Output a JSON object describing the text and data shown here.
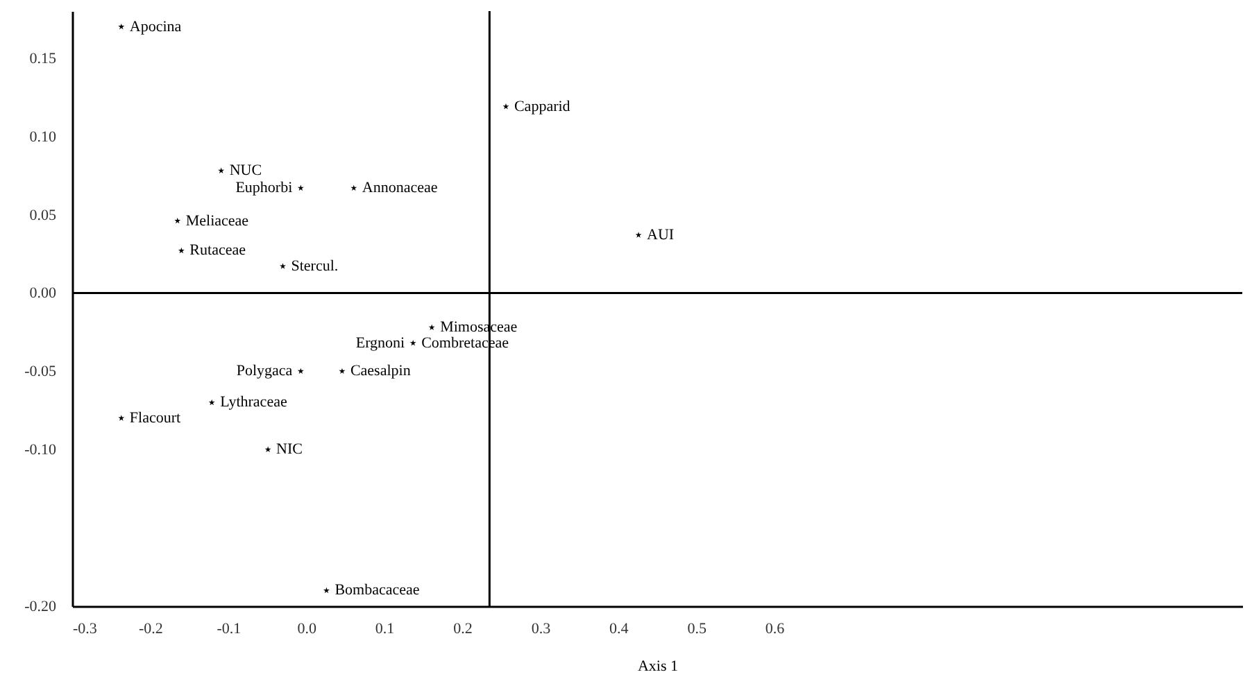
{
  "chart_data": {
    "type": "scatter",
    "xlabel": "Axis 1",
    "xlim": [
      -0.3,
      1.2
    ],
    "ylim": [
      -0.2,
      0.18
    ],
    "xticks": [
      -0.3,
      -0.2,
      -0.1,
      {
        "value": 0,
        "label": "0.0"
      },
      0.1,
      0.2,
      0.3,
      0.4,
      0.5,
      0.6
    ],
    "yticks": [
      {
        "value": 0.15,
        "label": "0.15"
      },
      {
        "value": 0.1,
        "label": "0.10"
      },
      {
        "value": 0.05,
        "label": "0.05"
      },
      {
        "value": 0,
        "label": "0.00"
      },
      {
        "value": -0.05,
        "label": "-0.05"
      },
      {
        "value": -0.1,
        "label": "-0.10"
      },
      {
        "value": -0.2,
        "label": "-0.20"
      }
    ],
    "marker": "star",
    "grid": false,
    "series": [
      {
        "color": "#000000",
        "x": [
          -0.237,
          0.256,
          -0.109,
          -0.007,
          0.061,
          -0.165,
          -0.16,
          -0.03,
          0.426,
          0.161,
          0.137,
          -0.007,
          0.046,
          -0.121,
          -0.237,
          -0.049,
          0.026
        ],
        "values": [
          0.17,
          0.119,
          0.078,
          0.067,
          0.067,
          0.046,
          0.027,
          0.017,
          0.037,
          -0.022,
          -0.032,
          -0.05,
          -0.05,
          -0.07,
          -0.08,
          -0.1,
          -0.19
        ]
      }
    ],
    "ref_lines": [
      {
        "axis": "x",
        "value": 0.235,
        "color": "#000000"
      },
      {
        "axis": "y",
        "value": 0,
        "color": "#000000"
      }
    ],
    "annotations": [
      {
        "text": "Apocina",
        "x": -0.237,
        "y": 0.17
      },
      {
        "text": "Capparid",
        "x": 0.256,
        "y": 0.119
      },
      {
        "text": "NUC",
        "x": -0.109,
        "y": 0.078
      },
      {
        "text": "Euphorbi",
        "x": -0.007,
        "y": 0.067
      },
      {
        "text": "Annonaceae",
        "x": 0.061,
        "y": 0.067
      },
      {
        "text": "Meliaceae",
        "x": -0.165,
        "y": 0.046
      },
      {
        "text": "Rutaceae",
        "x": -0.16,
        "y": 0.027
      },
      {
        "text": "Stercul.",
        "x": -0.03,
        "y": 0.017
      },
      {
        "text": "AUI",
        "x": 0.426,
        "y": 0.037
      },
      {
        "text": "Mimosaceae",
        "x": 0.161,
        "y": -0.022
      },
      {
        "text": "Ergnoni",
        "x": 0.137,
        "y": -0.032
      },
      {
        "text": "Combretaceae",
        "x": 0.137,
        "y": -0.032
      },
      {
        "text": "Polygaca",
        "x": -0.007,
        "y": -0.05
      },
      {
        "text": "Caesalpin",
        "x": 0.046,
        "y": -0.05
      },
      {
        "text": "Lythraceae",
        "x": -0.121,
        "y": -0.07
      },
      {
        "text": "Flacourt",
        "x": -0.237,
        "y": -0.08
      },
      {
        "text": "NIC",
        "x": -0.049,
        "y": -0.1
      },
      {
        "text": "Bombacaceae",
        "x": 0.026,
        "y": -0.19
      }
    ]
  }
}
